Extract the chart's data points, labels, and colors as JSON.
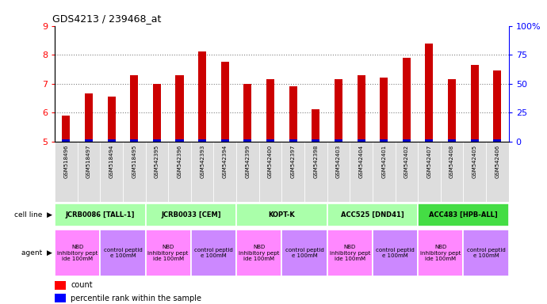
{
  "title": "GDS4213 / 239468_at",
  "samples": [
    "GSM518496",
    "GSM518497",
    "GSM518494",
    "GSM518495",
    "GSM542395",
    "GSM542396",
    "GSM542393",
    "GSM542394",
    "GSM542399",
    "GSM542400",
    "GSM542397",
    "GSM542398",
    "GSM542403",
    "GSM542404",
    "GSM542401",
    "GSM542402",
    "GSM542407",
    "GSM542408",
    "GSM542405",
    "GSM542406"
  ],
  "counts": [
    5.9,
    6.65,
    6.55,
    7.3,
    7.0,
    7.3,
    8.1,
    7.75,
    7.0,
    7.15,
    6.9,
    6.1,
    7.15,
    7.3,
    7.2,
    7.9,
    8.4,
    7.15,
    7.65,
    7.45
  ],
  "percentiles": [
    2,
    3,
    2,
    8,
    8,
    8,
    8,
    8,
    8,
    8,
    8,
    8,
    8,
    8,
    8,
    8,
    8,
    8,
    8,
    8
  ],
  "cell_lines": [
    {
      "label": "JCRB0086 [TALL-1]",
      "start": 0,
      "end": 4,
      "color": "#aaffaa"
    },
    {
      "label": "JCRB0033 [CEM]",
      "start": 4,
      "end": 8,
      "color": "#aaffaa"
    },
    {
      "label": "KOPT-K",
      "start": 8,
      "end": 12,
      "color": "#aaffaa"
    },
    {
      "label": "ACC525 [DND41]",
      "start": 12,
      "end": 16,
      "color": "#aaffaa"
    },
    {
      "label": "ACC483 [HPB-ALL]",
      "start": 16,
      "end": 20,
      "color": "#44dd44"
    }
  ],
  "agents": [
    {
      "label": "NBD\ninhibitory pept\nide 100mM",
      "start": 0,
      "end": 2,
      "color": "#ff88ff"
    },
    {
      "label": "control peptid\ne 100mM",
      "start": 2,
      "end": 4,
      "color": "#cc88ff"
    },
    {
      "label": "NBD\ninhibitory pept\nide 100mM",
      "start": 4,
      "end": 6,
      "color": "#ff88ff"
    },
    {
      "label": "control peptid\ne 100mM",
      "start": 6,
      "end": 8,
      "color": "#cc88ff"
    },
    {
      "label": "NBD\ninhibitory pept\nide 100mM",
      "start": 8,
      "end": 10,
      "color": "#ff88ff"
    },
    {
      "label": "control peptid\ne 100mM",
      "start": 10,
      "end": 12,
      "color": "#cc88ff"
    },
    {
      "label": "NBD\ninhibitory pept\nide 100mM",
      "start": 12,
      "end": 14,
      "color": "#ff88ff"
    },
    {
      "label": "control peptid\ne 100mM",
      "start": 14,
      "end": 16,
      "color": "#cc88ff"
    },
    {
      "label": "NBD\ninhibitory pept\nide 100mM",
      "start": 16,
      "end": 18,
      "color": "#ff88ff"
    },
    {
      "label": "control peptid\ne 100mM",
      "start": 18,
      "end": 20,
      "color": "#cc88ff"
    }
  ],
  "ylim_left": [
    5,
    9
  ],
  "ylim_right": [
    0,
    100
  ],
  "yticks_left": [
    5,
    6,
    7,
    8,
    9
  ],
  "yticks_right": [
    0,
    25,
    50,
    75,
    100
  ],
  "ytick_labels_right": [
    "0",
    "25",
    "50",
    "75",
    "100%"
  ],
  "bar_color": "#cc0000",
  "percentile_color": "#0000cc",
  "bar_width": 0.35,
  "background_color": "#ffffff"
}
